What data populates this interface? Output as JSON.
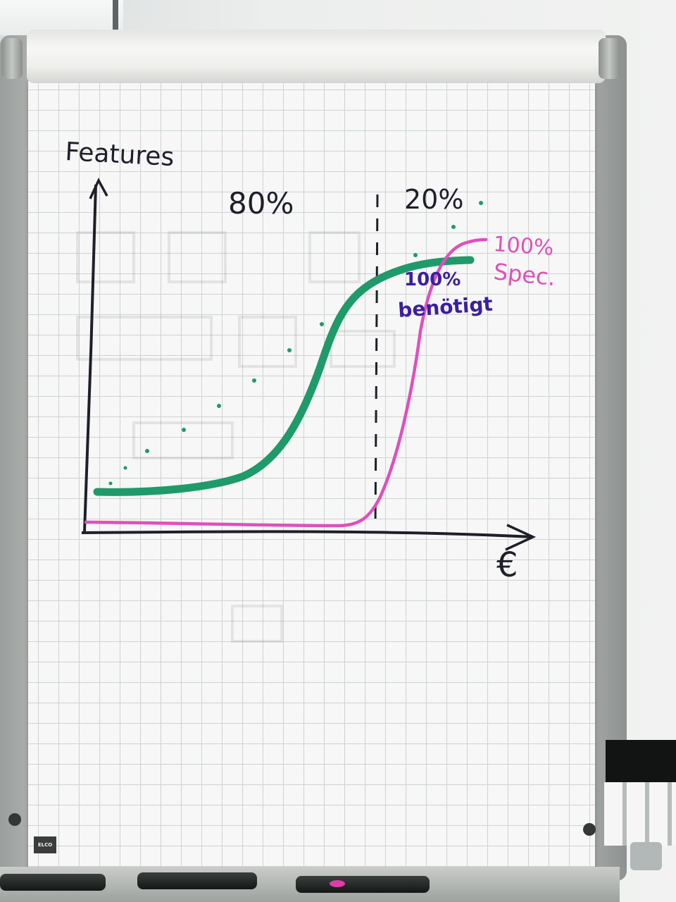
{
  "chart_data": {
    "type": "line",
    "title": "",
    "ylabel": "Features",
    "xlabel": "€",
    "grid": true,
    "series": [
      {
        "name": "100% benötigt",
        "color": "#1f9a6a"
      },
      {
        "name": "100% Spec.",
        "color": "#e04fbd"
      }
    ],
    "annotations": [
      "80%",
      "20%",
      "100% benötigt",
      "100% Spec."
    ],
    "divider_note": "dashed vertical line separating 80% and 20%"
  },
  "labels": {
    "y_axis": "Features",
    "x_axis": "€",
    "left_pct": "80%",
    "right_pct": "20%",
    "green_line1": "100%",
    "green_line2": "benötigt",
    "pink_line1": "100%",
    "pink_line2": "Spec."
  },
  "logo_text": "ELCO",
  "colors": {
    "green": "#1f9a6a",
    "pink": "#e04fbd",
    "purple": "#3b1fa0",
    "axis": "#1f1f2a"
  }
}
